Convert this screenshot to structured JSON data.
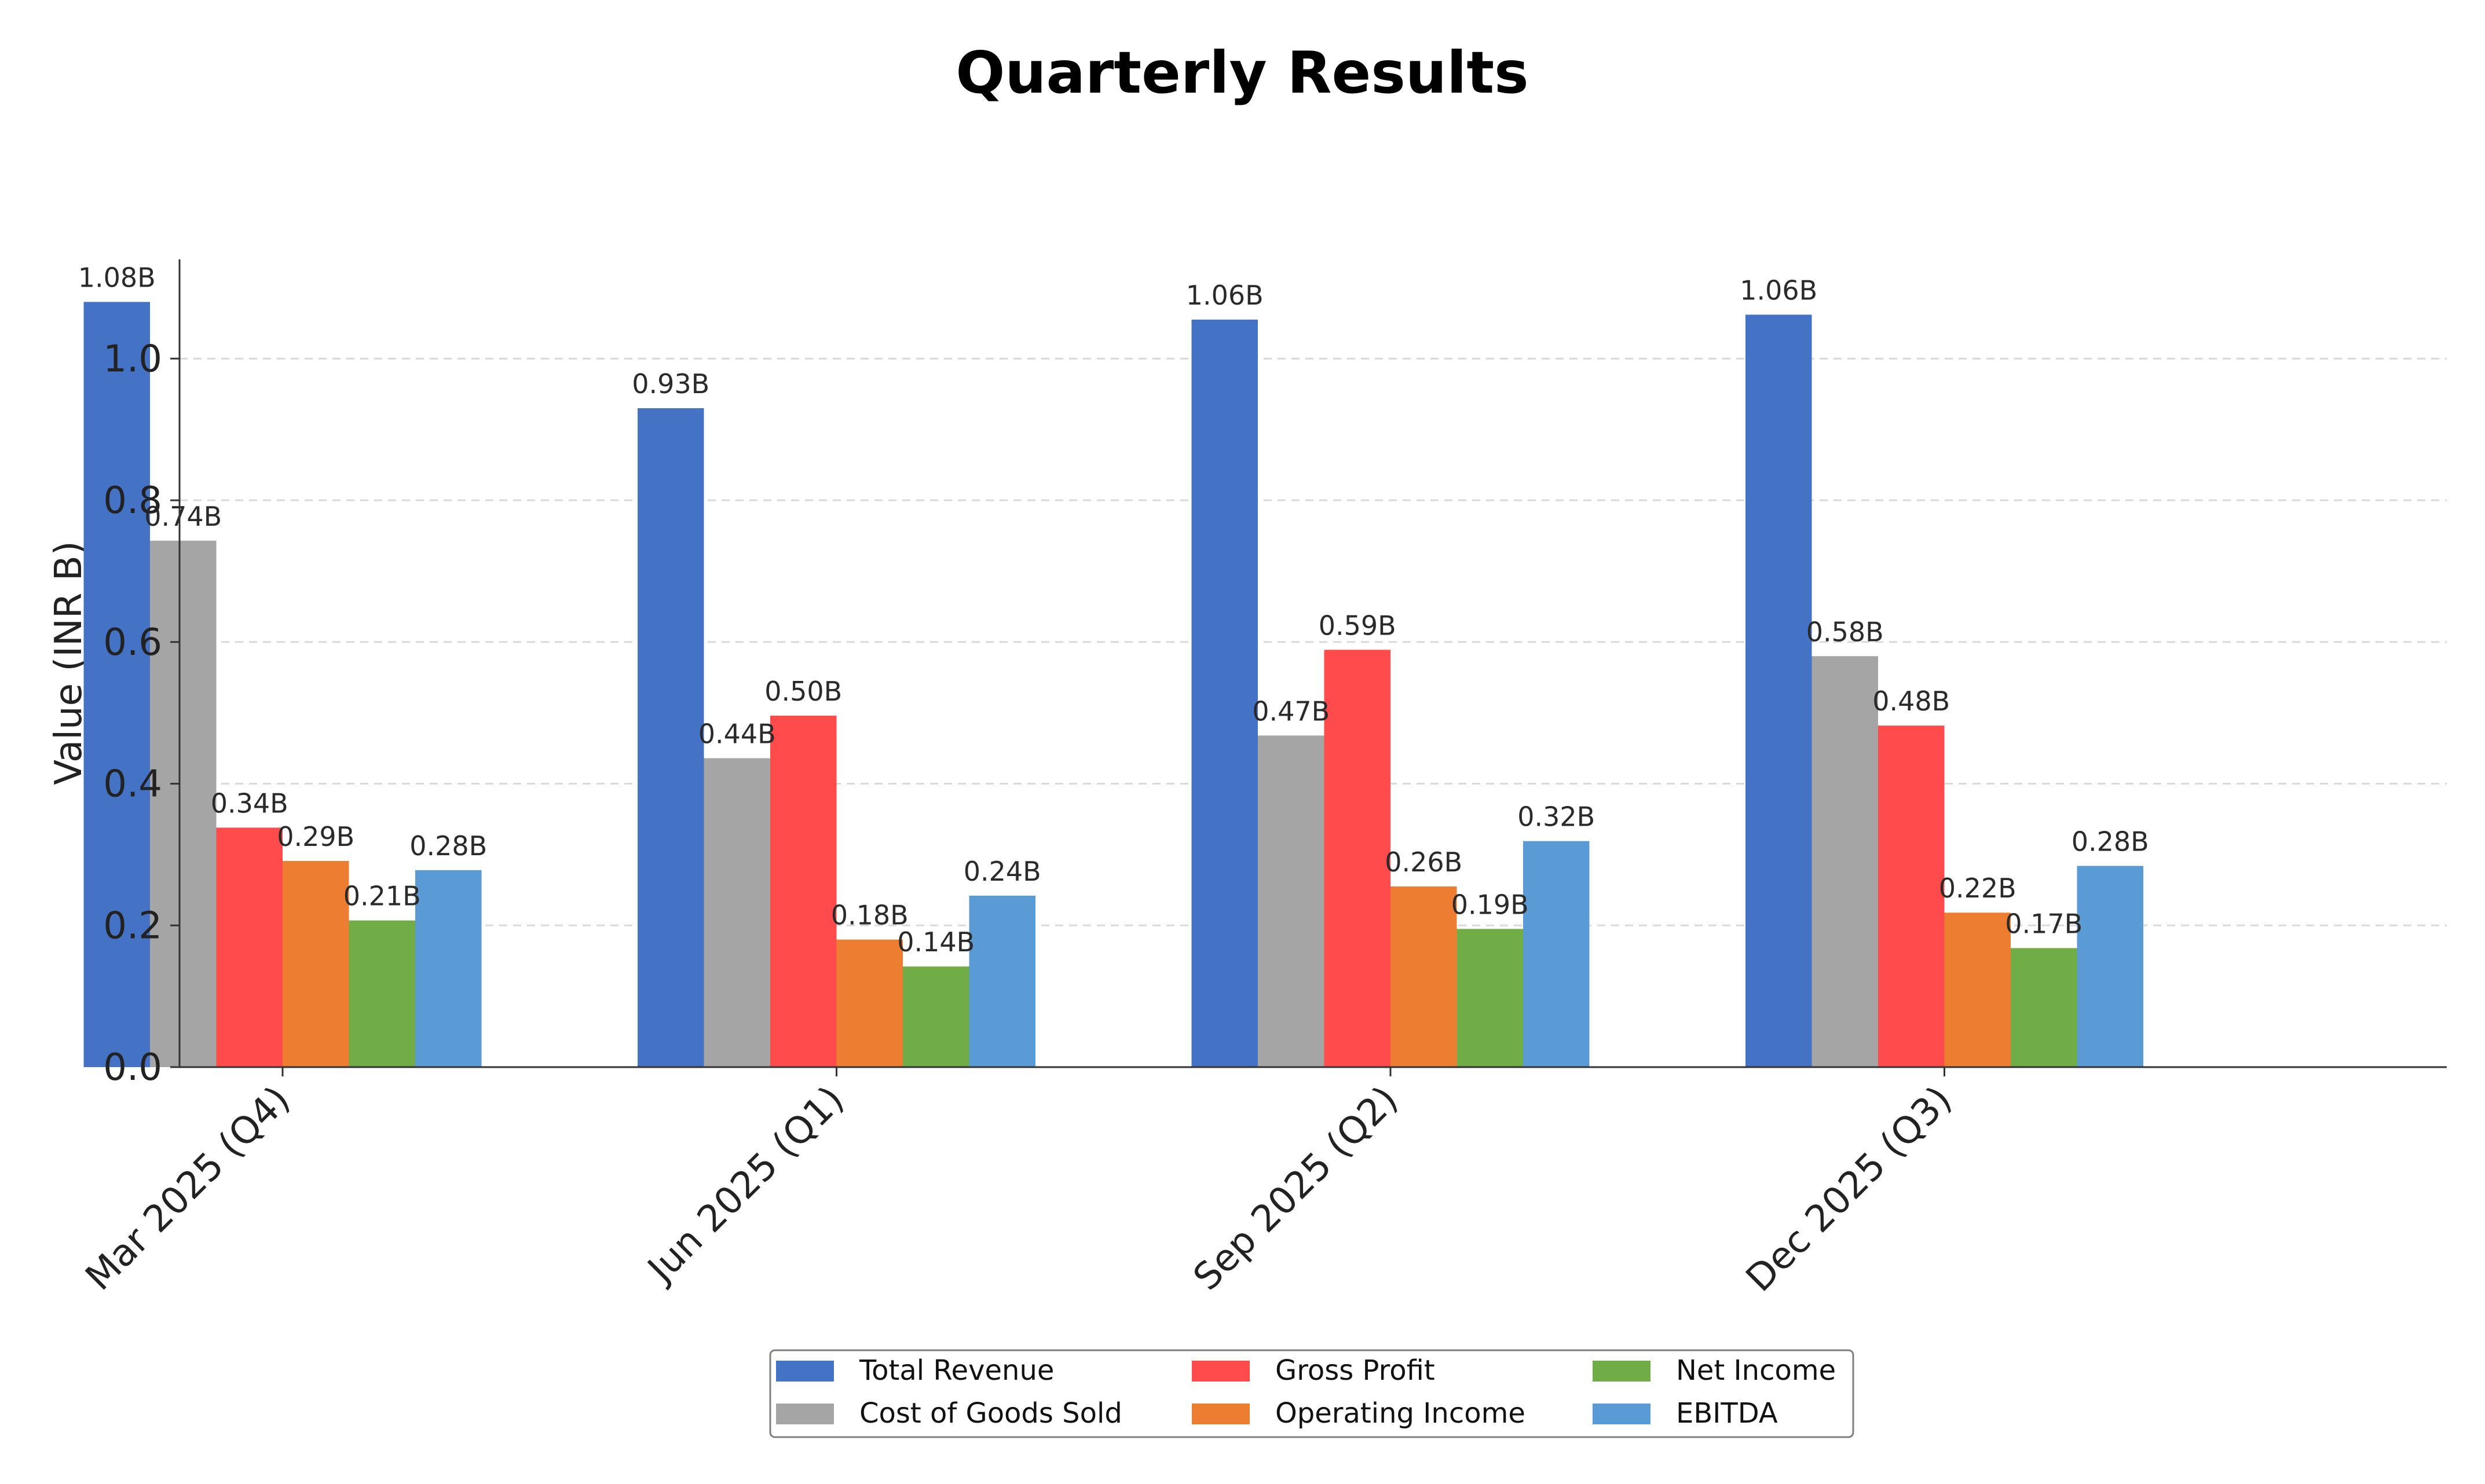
{
  "chart_data": {
    "type": "bar",
    "title": "Quarterly Results",
    "xlabel": "",
    "ylabel": "Value (INR B)",
    "ylim": [
      0,
      1.14
    ],
    "yticks": [
      0.0,
      0.2,
      0.4,
      0.6,
      0.8,
      1.0
    ],
    "ytick_labels": [
      "0.0",
      "0.2",
      "0.4",
      "0.6",
      "0.8",
      "1.0"
    ],
    "grid": "y-dashed",
    "legend_placement": "bottom-center",
    "categories": [
      "Mar 2025 (Q4)",
      "Jun 2025 (Q1)",
      "Sep 2025 (Q2)",
      "Dec 2025 (Q3)"
    ],
    "series": [
      {
        "name": "Total Revenue",
        "color": "#4472C4",
        "values": [
          1.08,
          0.93,
          1.055,
          1.062
        ],
        "labels": [
          "1.08B",
          "0.93B",
          "1.06B",
          "1.06B"
        ]
      },
      {
        "name": "Cost of Goods Sold",
        "color": "#A5A5A5",
        "values": [
          0.743,
          0.436,
          0.468,
          0.58
        ],
        "labels": [
          "0.74B",
          "0.44B",
          "0.47B",
          "0.58B"
        ]
      },
      {
        "name": "Gross Profit",
        "color": "#FF4B4B",
        "values": [
          0.338,
          0.496,
          0.589,
          0.482
        ],
        "labels": [
          "0.34B",
          "0.50B",
          "0.59B",
          "0.48B"
        ]
      },
      {
        "name": "Operating Income",
        "color": "#ED7D31",
        "values": [
          0.291,
          0.18,
          0.255,
          0.218
        ],
        "labels": [
          "0.29B",
          "0.18B",
          "0.26B",
          "0.22B"
        ]
      },
      {
        "name": "Net Income",
        "color": "#70AD47",
        "values": [
          0.207,
          0.142,
          0.195,
          0.168
        ],
        "labels": [
          "0.21B",
          "0.14B",
          "0.19B",
          "0.17B"
        ]
      },
      {
        "name": "EBITDA",
        "color": "#5B9BD5",
        "values": [
          0.278,
          0.242,
          0.319,
          0.284
        ],
        "labels": [
          "0.28B",
          "0.24B",
          "0.32B",
          "0.28B"
        ]
      }
    ]
  }
}
